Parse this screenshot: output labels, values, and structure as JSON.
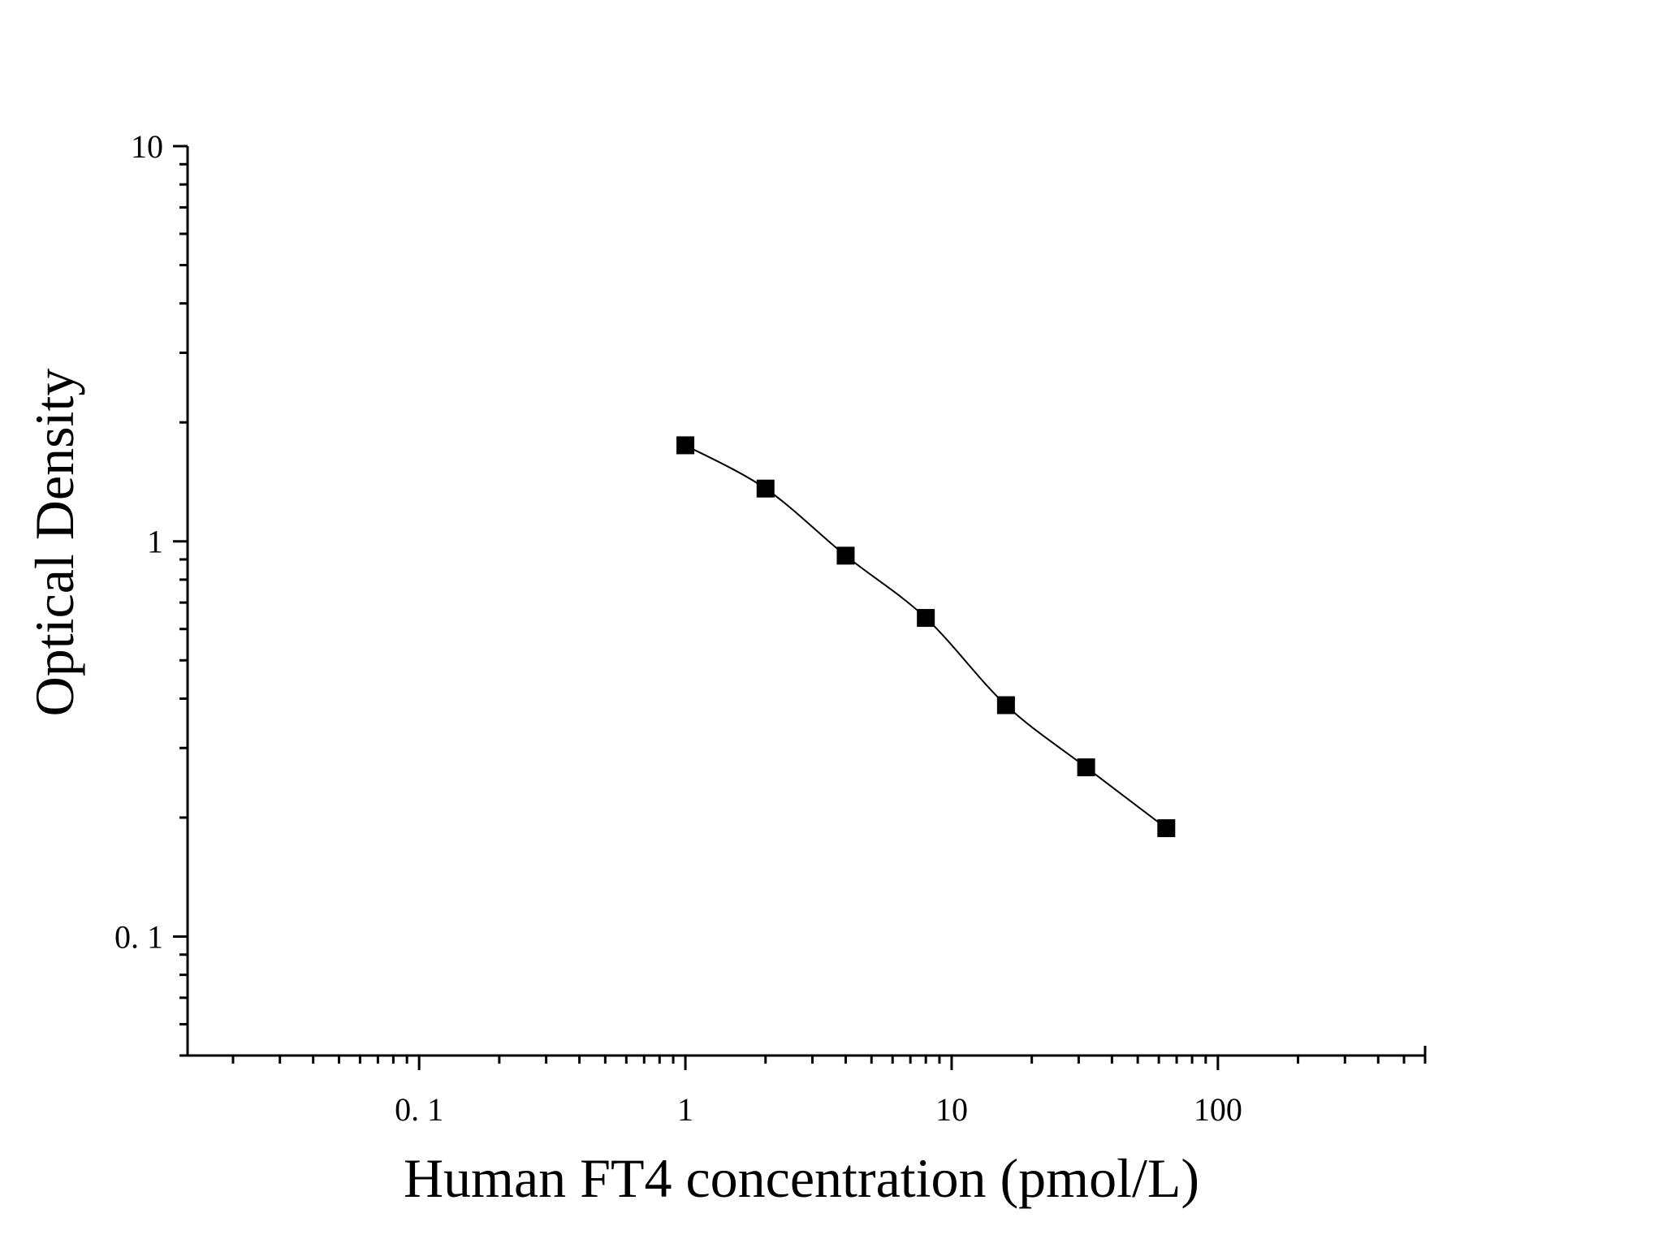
{
  "chart_data": {
    "type": "scatter",
    "title": "",
    "xlabel": "Human FT4 concentration (pmol/L)",
    "ylabel": "Optical Density",
    "xscale": "log",
    "yscale": "log",
    "xlim": [
      0.0135,
      600
    ],
    "ylim": [
      0.05,
      10
    ],
    "xticks": [
      {
        "value": 0.1,
        "label": "0. 1"
      },
      {
        "value": 1,
        "label": "1"
      },
      {
        "value": 10,
        "label": "10"
      },
      {
        "value": 100,
        "label": "100"
      }
    ],
    "yticks": [
      {
        "value": 0.1,
        "label": "0. 1"
      },
      {
        "value": 1,
        "label": "1"
      },
      {
        "value": 10,
        "label": "10"
      }
    ],
    "grid": false,
    "legend": false,
    "marker": "square",
    "color": "#000000",
    "series": [
      {
        "x": [
          1,
          2,
          4,
          8,
          16,
          32,
          64
        ],
        "y": [
          1.75,
          1.36,
          0.92,
          0.64,
          0.385,
          0.268,
          0.188
        ]
      }
    ],
    "fit_curve": true
  }
}
